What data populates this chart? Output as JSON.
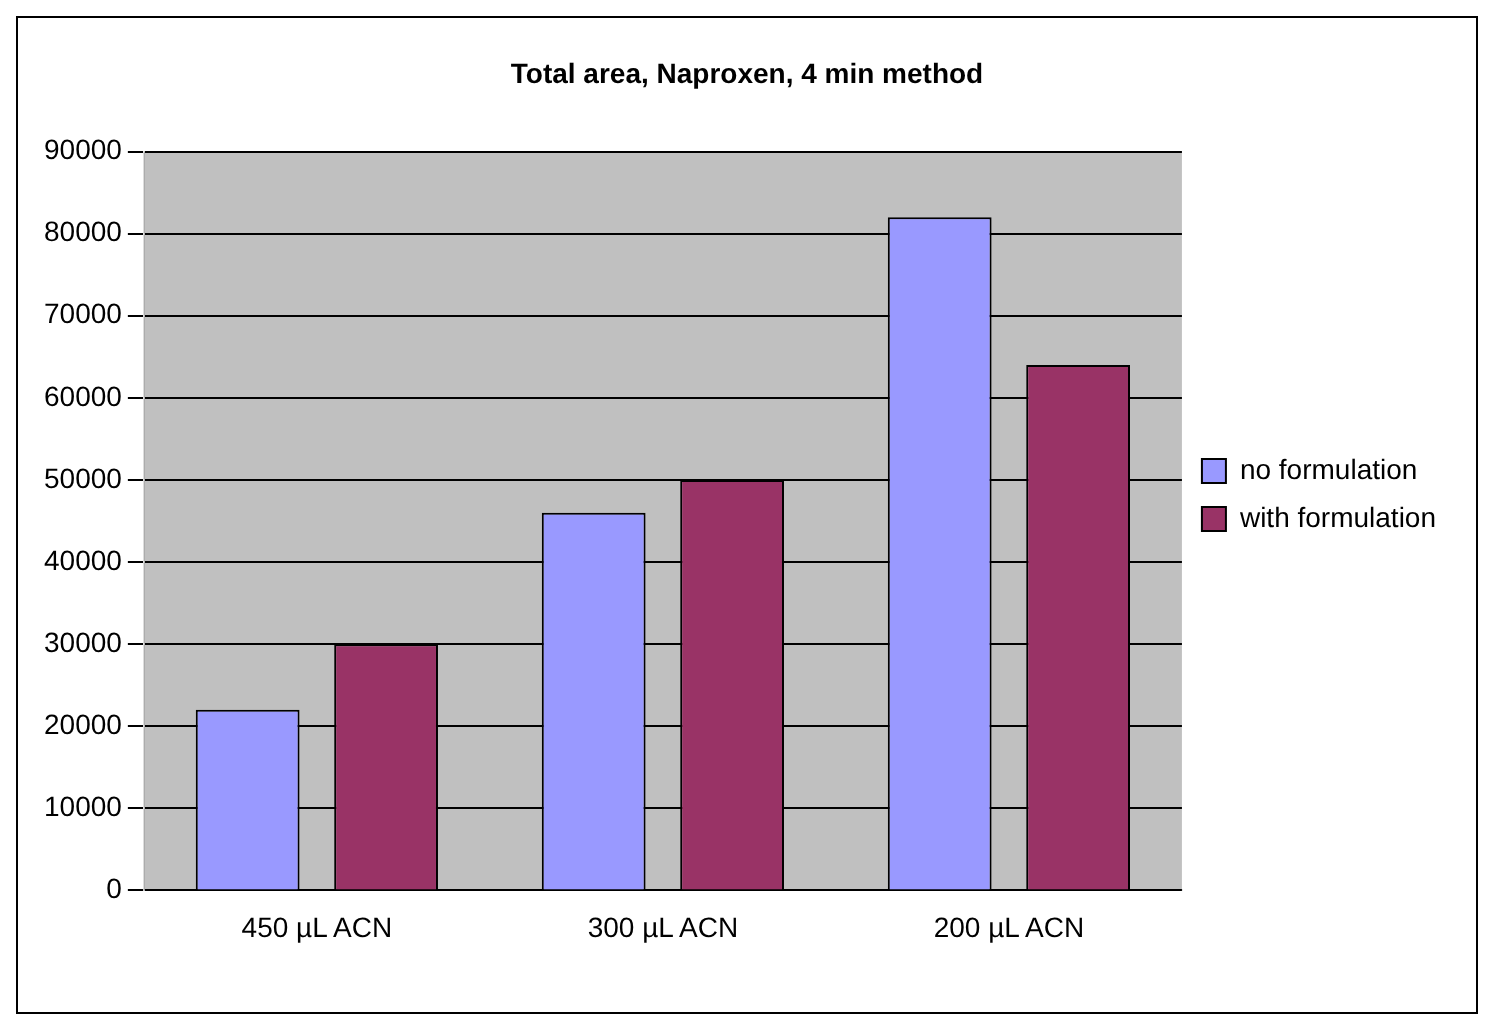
{
  "chart_data": {
    "type": "bar",
    "title": "Total area, Naproxen, 4 min method",
    "categories": [
      "450 µL ACN",
      "300 µL ACN",
      "200 µL ACN"
    ],
    "series": [
      {
        "name": "no formulation",
        "color": "#9999ff",
        "values": [
          22000,
          46000,
          82000
        ]
      },
      {
        "name": "with formulation",
        "color": "#993366",
        "values": [
          30000,
          50000,
          64000
        ]
      }
    ],
    "ylim": [
      0,
      90000
    ],
    "yticks": [
      0,
      10000,
      20000,
      30000,
      40000,
      50000,
      60000,
      70000,
      80000,
      90000
    ],
    "grid": "y",
    "legend": "right"
  }
}
